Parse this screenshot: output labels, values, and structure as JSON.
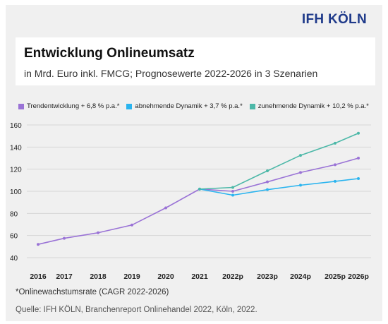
{
  "brand": "IFH KÖLN",
  "colors": {
    "trend": "#9a73d6",
    "abnehmend": "#2ab4ef",
    "zunehmend": "#4cb8a8",
    "brand": "#1f3a8a"
  },
  "chart_data": {
    "type": "line",
    "title": "Entwicklung Onlineumsatz",
    "subtitle": "in Mrd. Euro inkl. FMCG; Prognosewerte 2022-2026 in 3 Szenarien",
    "xlabel": "",
    "ylabel": "",
    "categories": [
      "2016",
      "2017",
      "2018",
      "2019",
      "2020",
      "2021",
      "2022p",
      "2023p",
      "2024p",
      "2025p",
      "2026p"
    ],
    "ylim": [
      40,
      160
    ],
    "yticks": [
      40,
      60,
      80,
      100,
      120,
      140,
      160
    ],
    "grid": true,
    "legend_position": "top-left",
    "series": [
      {
        "name": "Trendentwicklung + 6,8 % p.a.*",
        "color_key": "trend",
        "values": [
          52,
          57.5,
          62.5,
          69.5,
          85,
          102,
          100,
          108.5,
          117,
          124,
          130
        ]
      },
      {
        "name": "abnehmende Dynamik + 3,7 % p.a.*",
        "color_key": "abnehmend",
        "values": [
          null,
          null,
          null,
          null,
          null,
          102,
          96.5,
          101.5,
          105.5,
          109,
          111.5
        ]
      },
      {
        "name": "zunehmende Dynamik + 10,2 % p.a.*",
        "color_key": "zunehmend",
        "values": [
          null,
          null,
          null,
          null,
          null,
          102,
          103.5,
          118.5,
          132.5,
          143.5,
          152.5
        ]
      }
    ]
  },
  "footnote": "*Onlinewachstumsrate (CAGR 2022-2026)",
  "source": "Quelle: IFH KÖLN, Branchenreport Onlinehandel 2022, Köln, 2022."
}
